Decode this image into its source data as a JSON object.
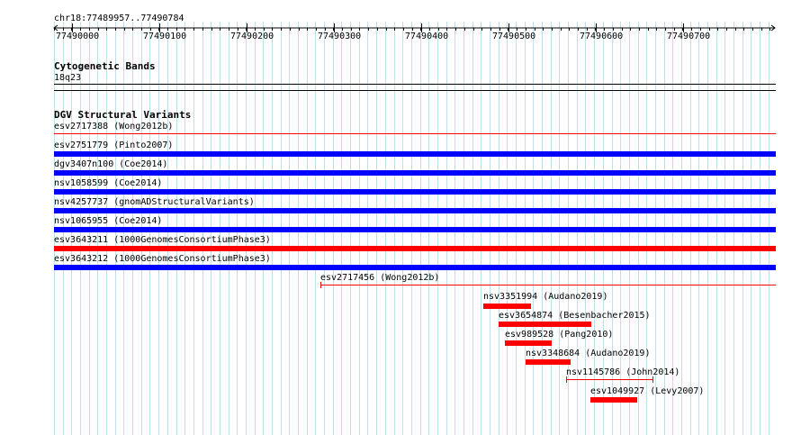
{
  "ruler": {
    "location": "chr18:77489957..77490784",
    "ticks": [
      "77490000",
      "77490100",
      "77490200",
      "77490300",
      "77490400",
      "77490500",
      "77490600",
      "77490700"
    ]
  },
  "cytoband": {
    "title": "Cytogenetic Bands",
    "band": "18q23"
  },
  "dgv": {
    "title": "DGV Structural Variants",
    "features": [
      {
        "label": "esv2717388 (Wong2012b)",
        "color": "#ff0000",
        "style": "line"
      },
      {
        "label": "esv2751779 (Pinto2007)",
        "color": "#0000ff",
        "style": "bar"
      },
      {
        "label": "dgv3407n100 (Coe2014)",
        "color": "#0000ff",
        "style": "bar"
      },
      {
        "label": "nsv1058599 (Coe2014)",
        "color": "#0000ff",
        "style": "bar"
      },
      {
        "label": "nsv4257737 (gnomADStructuralVariants)",
        "color": "#0000ff",
        "style": "bar"
      },
      {
        "label": "nsv1065955 (Coe2014)",
        "color": "#0000ff",
        "style": "bar"
      },
      {
        "label": "esv3643211 (1000GenomesConsortiumPhase3)",
        "color": "#ff0000",
        "style": "bar"
      },
      {
        "label": "esv3643212 (1000GenomesConsortiumPhase3)",
        "color": "#0000ff",
        "style": "bar"
      },
      {
        "label": "esv2717456 (Wong2012b)",
        "color": "#ff0000",
        "style": "line"
      },
      {
        "label": "nsv3351994 (Audano2019)",
        "color": "#ff0000",
        "style": "bar"
      },
      {
        "label": "esv3654874 (Besenbacher2015)",
        "color": "#ff0000",
        "style": "bar"
      },
      {
        "label": "esv989528 (Pang2010)",
        "color": "#ff0000",
        "style": "bar"
      },
      {
        "label": "nsv3348684 (Audano2019)",
        "color": "#ff0000",
        "style": "bar"
      },
      {
        "label": "nsv1145786 (John2014)",
        "color": "#ff0000",
        "style": "line"
      },
      {
        "label": "esv1049927 (Levy2007)",
        "color": "#ff0000",
        "style": "bar"
      }
    ]
  }
}
